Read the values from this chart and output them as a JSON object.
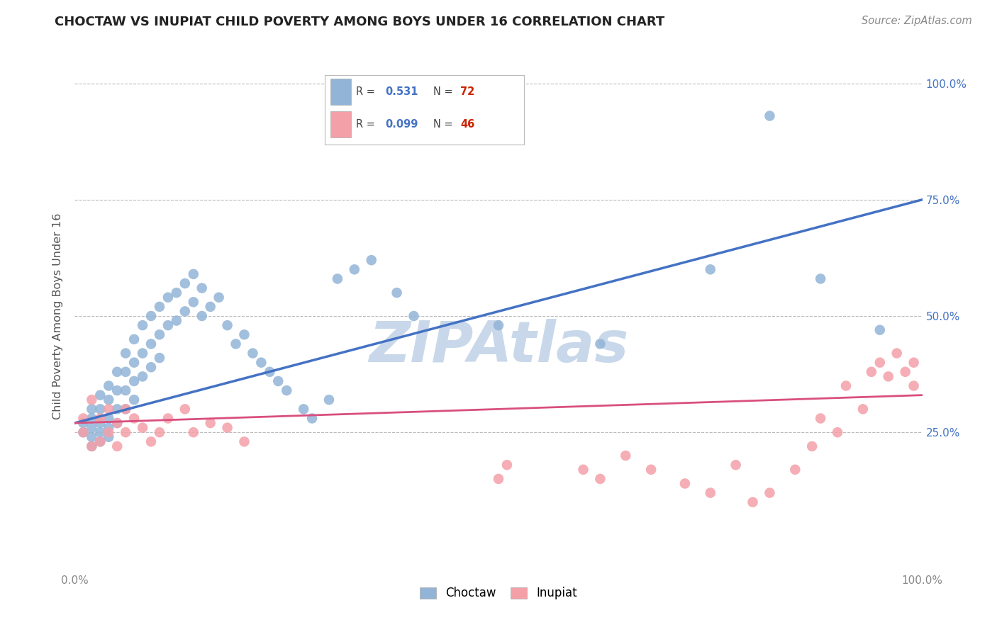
{
  "title": "CHOCTAW VS INUPIAT CHILD POVERTY AMONG BOYS UNDER 16 CORRELATION CHART",
  "source": "Source: ZipAtlas.com",
  "ylabel": "Child Poverty Among Boys Under 16",
  "xlim": [
    0,
    1
  ],
  "ylim": [
    -0.05,
    1.05
  ],
  "choctaw_color": "#92b4d7",
  "inupiat_color": "#f4a0a8",
  "choctaw_line_color": "#4472c4",
  "inupiat_line_color": "#d94f7e",
  "R_choctaw": "0.531",
  "N_choctaw": "72",
  "R_inupiat": "0.099",
  "N_inupiat": "46",
  "watermark": "ZIPAtlas",
  "watermark_color": "#c8d8ea",
  "background_color": "#ffffff",
  "grid_color": "#bbbbbb",
  "title_color": "#222222",
  "axis_label_color": "#555555",
  "tick_label_color_right": "#4472c4",
  "choctaw_x": [
    0.01,
    0.01,
    0.02,
    0.02,
    0.02,
    0.02,
    0.02,
    0.03,
    0.03,
    0.03,
    0.03,
    0.03,
    0.04,
    0.04,
    0.04,
    0.04,
    0.04,
    0.05,
    0.05,
    0.05,
    0.05,
    0.06,
    0.06,
    0.06,
    0.06,
    0.07,
    0.07,
    0.07,
    0.07,
    0.08,
    0.08,
    0.08,
    0.09,
    0.09,
    0.09,
    0.1,
    0.1,
    0.1,
    0.11,
    0.11,
    0.12,
    0.12,
    0.13,
    0.13,
    0.14,
    0.14,
    0.15,
    0.15,
    0.16,
    0.17,
    0.18,
    0.19,
    0.2,
    0.21,
    0.22,
    0.23,
    0.24,
    0.25,
    0.27,
    0.28,
    0.3,
    0.31,
    0.33,
    0.35,
    0.38,
    0.4,
    0.5,
    0.62,
    0.75,
    0.82,
    0.88,
    0.95
  ],
  "choctaw_y": [
    0.27,
    0.25,
    0.3,
    0.28,
    0.26,
    0.24,
    0.22,
    0.33,
    0.3,
    0.27,
    0.25,
    0.23,
    0.35,
    0.32,
    0.28,
    0.26,
    0.24,
    0.38,
    0.34,
    0.3,
    0.27,
    0.42,
    0.38,
    0.34,
    0.3,
    0.45,
    0.4,
    0.36,
    0.32,
    0.48,
    0.42,
    0.37,
    0.5,
    0.44,
    0.39,
    0.52,
    0.46,
    0.41,
    0.54,
    0.48,
    0.55,
    0.49,
    0.57,
    0.51,
    0.59,
    0.53,
    0.56,
    0.5,
    0.52,
    0.54,
    0.48,
    0.44,
    0.46,
    0.42,
    0.4,
    0.38,
    0.36,
    0.34,
    0.3,
    0.28,
    0.32,
    0.58,
    0.6,
    0.62,
    0.55,
    0.5,
    0.48,
    0.44,
    0.6,
    0.93,
    0.58,
    0.47
  ],
  "inupiat_x": [
    0.01,
    0.01,
    0.02,
    0.02,
    0.03,
    0.03,
    0.04,
    0.04,
    0.05,
    0.05,
    0.06,
    0.06,
    0.07,
    0.08,
    0.09,
    0.1,
    0.11,
    0.13,
    0.14,
    0.16,
    0.18,
    0.2,
    0.5,
    0.51,
    0.6,
    0.62,
    0.65,
    0.68,
    0.72,
    0.75,
    0.78,
    0.8,
    0.82,
    0.85,
    0.87,
    0.88,
    0.9,
    0.91,
    0.93,
    0.94,
    0.95,
    0.96,
    0.97,
    0.98,
    0.99,
    0.99
  ],
  "inupiat_y": [
    0.28,
    0.25,
    0.32,
    0.22,
    0.28,
    0.23,
    0.3,
    0.25,
    0.27,
    0.22,
    0.3,
    0.25,
    0.28,
    0.26,
    0.23,
    0.25,
    0.28,
    0.3,
    0.25,
    0.27,
    0.26,
    0.23,
    0.15,
    0.18,
    0.17,
    0.15,
    0.2,
    0.17,
    0.14,
    0.12,
    0.18,
    0.1,
    0.12,
    0.17,
    0.22,
    0.28,
    0.25,
    0.35,
    0.3,
    0.38,
    0.4,
    0.37,
    0.42,
    0.38,
    0.35,
    0.4
  ]
}
